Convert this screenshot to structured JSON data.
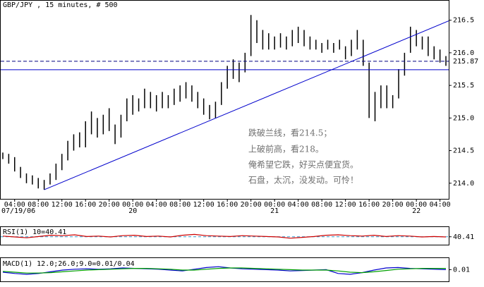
{
  "chart_data": [
    {
      "type": "ohlc",
      "title": "GBP/JPY , 15 minutes, # 500",
      "color": "#000000",
      "categories": [
        null,
        null,
        "04:00",
        null,
        null,
        null,
        "08:00",
        null,
        null,
        null,
        "12:00",
        null,
        null,
        null,
        "16:00",
        null,
        null,
        null,
        "20:00",
        null,
        null,
        null,
        "00:00",
        null,
        null,
        null,
        "04:00",
        null,
        null,
        null,
        "08:00",
        null,
        null,
        null,
        "12:00",
        null,
        null,
        null,
        "16:00",
        null,
        null,
        null,
        "20:00",
        null,
        null,
        null,
        "00:00",
        null,
        null,
        null,
        "04:00",
        null,
        null,
        null,
        "08:00",
        null,
        null,
        null,
        "12:00",
        null,
        null,
        null,
        "16:00",
        null,
        null,
        null,
        "20:00",
        null,
        null,
        null,
        "00:00",
        null,
        null,
        null,
        "04:00",
        null
      ],
      "dates": [
        "07/19/06",
        null,
        null,
        null,
        null,
        null,
        null,
        null,
        null,
        null,
        null,
        null,
        null,
        null,
        null,
        null,
        null,
        null,
        null,
        null,
        null,
        null,
        "20",
        null,
        null,
        null,
        null,
        null,
        null,
        null,
        null,
        null,
        null,
        null,
        null,
        null,
        null,
        null,
        null,
        null,
        null,
        null,
        null,
        null,
        null,
        null,
        "21",
        null,
        null,
        null,
        null,
        null,
        null,
        null,
        null,
        null,
        null,
        null,
        null,
        null,
        null,
        null,
        null,
        null,
        null,
        null,
        null,
        null,
        null,
        null,
        "22",
        null,
        null,
        null,
        null,
        null
      ],
      "high": [
        214.47,
        214.45,
        214.4,
        214.25,
        214.15,
        214.12,
        214.08,
        214.05,
        214.15,
        214.3,
        214.45,
        214.65,
        214.75,
        214.78,
        214.95,
        215.1,
        215.0,
        215.05,
        215.15,
        214.9,
        215.05,
        215.3,
        215.35,
        215.3,
        215.45,
        215.4,
        215.35,
        215.4,
        215.35,
        215.45,
        215.5,
        215.55,
        215.5,
        215.4,
        215.3,
        215.2,
        215.25,
        215.55,
        215.8,
        215.9,
        215.85,
        216.0,
        216.58,
        216.5,
        216.35,
        216.3,
        216.25,
        216.3,
        216.25,
        216.35,
        216.4,
        216.35,
        216.25,
        216.2,
        216.15,
        216.2,
        216.15,
        216.2,
        216.1,
        216.2,
        216.35,
        216.2,
        215.85,
        215.4,
        215.5,
        215.5,
        215.35,
        215.75,
        216.0,
        216.4,
        216.35,
        216.25,
        216.25,
        216.1,
        216.05,
        215.95
      ],
      "low": [
        214.37,
        214.3,
        214.18,
        214.08,
        214.0,
        213.98,
        213.92,
        213.9,
        213.98,
        214.05,
        214.2,
        214.35,
        214.5,
        214.55,
        214.55,
        214.75,
        214.7,
        214.75,
        214.8,
        214.6,
        214.7,
        214.95,
        215.05,
        215.1,
        215.15,
        215.15,
        215.1,
        215.15,
        215.15,
        215.2,
        215.25,
        215.3,
        215.25,
        215.15,
        215.05,
        214.98,
        215.0,
        215.2,
        215.45,
        215.6,
        215.55,
        215.7,
        215.95,
        216.15,
        216.05,
        216.05,
        216.05,
        216.08,
        216.05,
        216.1,
        216.15,
        216.1,
        216.05,
        216.05,
        216.0,
        216.05,
        216.0,
        216.05,
        215.9,
        215.95,
        216.05,
        215.8,
        215.0,
        214.95,
        215.15,
        215.15,
        215.15,
        215.3,
        215.65,
        216.0,
        216.1,
        216.05,
        215.95,
        215.9,
        215.85,
        215.8
      ],
      "ylim": [
        213.76,
        216.68
      ],
      "yticks": [
        {
          "value": 214,
          "label": "214.0"
        },
        214.5,
        {
          "value": 215,
          "label": "215.0"
        },
        215.5,
        {
          "value": 216,
          "label": "216.0"
        },
        216.5
      ],
      "bid": 215.87,
      "bid_color": "#000080",
      "hline": 215.74,
      "line_color": "#0000cc",
      "trendline": [
        213.9,
        216.49
      ],
      "annotations": [
        "跌破兰线，看214.5；",
        "上破前高，看218。",
        "俺希望它跌，好买点便宜货。",
        "石盘，太沉，没发动。可怜！"
      ]
    },
    {
      "type": "line",
      "label": "RSI(1) 10=40.41",
      "label_color": "#cc0000",
      "series": [
        {
          "color": "#cc0000",
          "values": [
            42,
            40,
            38,
            41,
            44,
            43,
            45,
            41,
            42,
            40,
            43,
            44,
            41,
            42,
            40,
            44,
            46,
            43,
            42,
            41,
            43,
            42,
            41,
            40,
            37,
            39,
            41,
            44,
            45,
            43,
            42,
            44,
            41,
            43,
            42,
            40,
            41,
            40
          ]
        }
      ],
      "ylim": [
        25,
        60
      ],
      "yticks": [
        40.41
      ],
      "level": 40.41,
      "level_color": "#3399cc"
    },
    {
      "type": "line",
      "label": "MACD(1) 12.0;26.0;9.0=0.01/0.04",
      "label_color": "#000080",
      "series": [
        {
          "color": "#0000cc",
          "values": [
            -0.05,
            -0.08,
            -0.1,
            -0.08,
            -0.04,
            0.0,
            0.02,
            0.03,
            0.02,
            0.03,
            0.05,
            0.04,
            0.03,
            0.02,
            0.0,
            -0.02,
            0.02,
            0.06,
            0.08,
            0.05,
            0.03,
            0.02,
            0.01,
            0.0,
            -0.02,
            -0.01,
            0.0,
            0.01,
            -0.08,
            -0.1,
            -0.06,
            0.0,
            0.05,
            0.06,
            0.04,
            0.03,
            0.02,
            0.01
          ]
        },
        {
          "color": "#00a000",
          "values": [
            -0.03,
            -0.05,
            -0.07,
            -0.07,
            -0.06,
            -0.04,
            -0.02,
            0.0,
            0.01,
            0.02,
            0.03,
            0.04,
            0.04,
            0.03,
            0.02,
            0.0,
            0.0,
            0.02,
            0.04,
            0.05,
            0.05,
            0.04,
            0.03,
            0.02,
            0.01,
            0.0,
            0.0,
            0.0,
            -0.02,
            -0.05,
            -0.06,
            -0.04,
            -0.01,
            0.02,
            0.03,
            0.04,
            0.04,
            0.04
          ]
        }
      ],
      "ylim": [
        -0.25,
        0.25
      ],
      "yticks": [
        0.01
      ]
    }
  ]
}
